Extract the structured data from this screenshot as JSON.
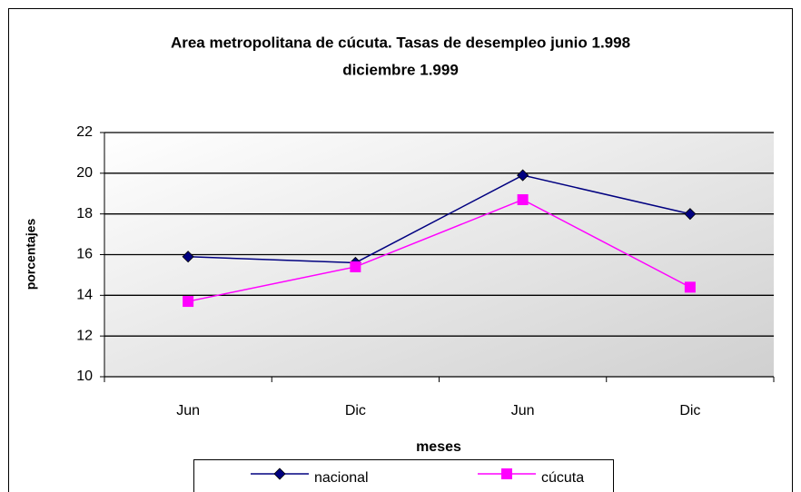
{
  "chart_data": {
    "type": "line",
    "title": [
      "Area metropolitana de cúcuta. Tasas de desempleo junio 1.998",
      "diciembre 1.999"
    ],
    "x_label": "meses",
    "y_label": "porcentajes",
    "categories": [
      "Jun",
      "Dic",
      "Jun",
      "Dic"
    ],
    "series": [
      {
        "name": "nacional",
        "color": "#000080",
        "marker": "diamond",
        "values": [
          15.9,
          15.6,
          19.9,
          18.0
        ]
      },
      {
        "name": "cúcuta",
        "color": "#ff00ff",
        "marker": "square",
        "values": [
          13.7,
          15.4,
          18.7,
          14.4
        ]
      }
    ],
    "ylim": [
      10,
      22
    ],
    "yticks": [
      10,
      12,
      14,
      16,
      18,
      20,
      22
    ],
    "grid": true,
    "legend": "bottom"
  }
}
